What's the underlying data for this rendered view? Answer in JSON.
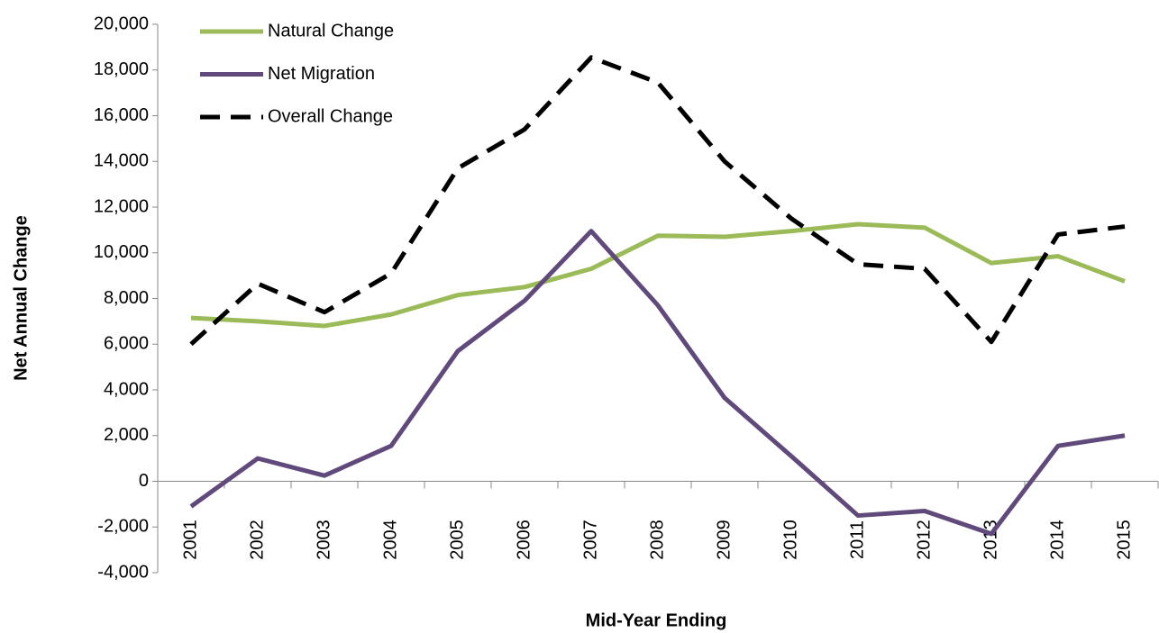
{
  "chart_data": {
    "type": "line",
    "x_label": "Mid-Year Ending",
    "y_label": "Net Annual Change",
    "categories": [
      "2001",
      "2002",
      "2003",
      "2004",
      "2005",
      "2006",
      "2007",
      "2008",
      "2009",
      "2010",
      "2011",
      "2012",
      "2013",
      "2014",
      "2015"
    ],
    "series": [
      {
        "name": "Natural Change",
        "color": "#9bbb59",
        "dash": "solid",
        "values": [
          7150,
          7000,
          6800,
          7300,
          8150,
          8500,
          9300,
          10750,
          10700,
          10950,
          11250,
          11100,
          9550,
          9850,
          8750
        ]
      },
      {
        "name": "Net Migration",
        "color": "#604a7b",
        "dash": "solid",
        "values": [
          -1100,
          1000,
          250,
          1550,
          5700,
          7900,
          10950,
          7700,
          3650,
          1100,
          -1500,
          -1300,
          -2300,
          1550,
          2000
        ]
      },
      {
        "name": "Overall Change",
        "color": "#000000",
        "dash": "dashed",
        "values": [
          6000,
          8650,
          7400,
          9100,
          13700,
          15400,
          18550,
          17450,
          14000,
          11500,
          9500,
          9300,
          6100,
          10800,
          11150
        ]
      }
    ],
    "ylim": [
      -4000,
      20000
    ],
    "yticks": [
      {
        "value": -4000,
        "label": "-4,000"
      },
      {
        "value": -2000,
        "label": "-2,000"
      },
      0,
      {
        "value": 2000,
        "label": "2,000"
      },
      {
        "value": 4000,
        "label": "4,000"
      },
      {
        "value": 6000,
        "label": "6,000"
      },
      {
        "value": 8000,
        "label": "8,000"
      },
      {
        "value": 10000,
        "label": "10,000"
      },
      {
        "value": 12000,
        "label": "12,000"
      },
      {
        "value": 14000,
        "label": "14,000"
      },
      {
        "value": 16000,
        "label": "16,000"
      },
      {
        "value": 18000,
        "label": "18,000"
      },
      {
        "value": 20000,
        "label": "20,000"
      }
    ],
    "grid": false,
    "legend": "top-left"
  }
}
